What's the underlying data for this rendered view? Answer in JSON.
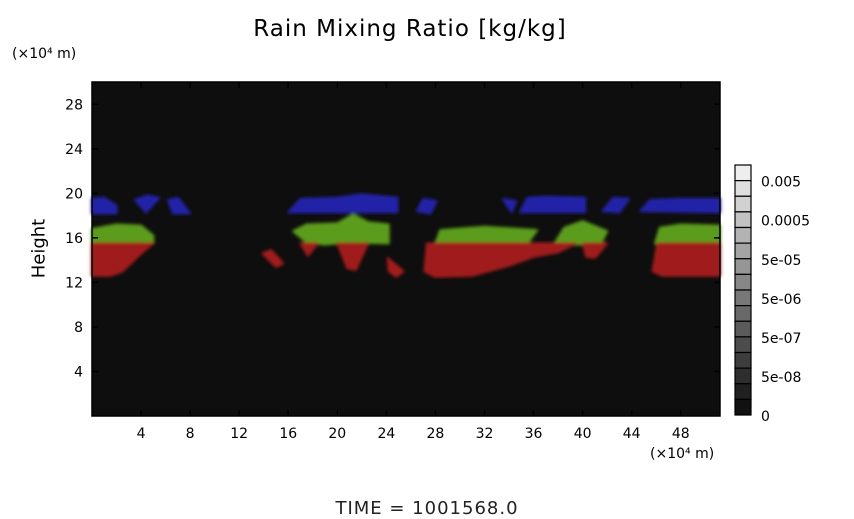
{
  "chart_data": {
    "type": "heatmap",
    "title": "Rain Mixing Ratio [kg/kg]",
    "ylabel": "Height",
    "xunit": "(×10⁴ m)",
    "yunit": "(×10⁴ m)",
    "footer": "TIME = 1001568.0",
    "xlim": [
      0,
      51.2
    ],
    "ylim": [
      0,
      30
    ],
    "xticks": [
      "4",
      "8",
      "12",
      "16",
      "20",
      "24",
      "28",
      "32",
      "36",
      "40",
      "44",
      "48"
    ],
    "yticks": [
      "4",
      "8",
      "12",
      "16",
      "20",
      "24",
      "28"
    ],
    "background_color": "#0e0e0e",
    "colorbar": {
      "levels": 16,
      "labels": [
        "0.005",
        "0.0005",
        "5e-05",
        "5e-06",
        "5e-07",
        "5e-08",
        "0"
      ]
    },
    "layer_colors": {
      "blue": "#2222a8",
      "green": "#5c9c1a",
      "red": "#a01a1a"
    },
    "regions": [
      {
        "layer": "blue",
        "polygon": [
          [
            0,
            18.2
          ],
          [
            0,
            19.5
          ],
          [
            1,
            19.6
          ],
          [
            2,
            18.9
          ],
          [
            2,
            18.2
          ]
        ]
      },
      {
        "layer": "blue",
        "polygon": [
          [
            3.5,
            19.4
          ],
          [
            4.4,
            18.3
          ],
          [
            5.5,
            19.6
          ],
          [
            4.5,
            19.8
          ]
        ]
      },
      {
        "layer": "blue",
        "polygon": [
          [
            6.2,
            19.4
          ],
          [
            7,
            19.6
          ],
          [
            8,
            18.2
          ],
          [
            6.6,
            18.2
          ]
        ]
      },
      {
        "layer": "blue",
        "polygon": [
          [
            16,
            18.3
          ],
          [
            17,
            19.5
          ],
          [
            20,
            19.6
          ],
          [
            22,
            19.9
          ],
          [
            24.9,
            19.6
          ],
          [
            24.9,
            18.3
          ]
        ]
      },
      {
        "layer": "blue",
        "polygon": [
          [
            26.5,
            18.4
          ],
          [
            27,
            19.5
          ],
          [
            28.1,
            19.3
          ],
          [
            27.6,
            18.2
          ]
        ]
      },
      {
        "layer": "blue",
        "polygon": [
          [
            33.5,
            19.5
          ],
          [
            34.2,
            18.3
          ],
          [
            34.6,
            19.3
          ]
        ]
      },
      {
        "layer": "blue",
        "polygon": [
          [
            34.9,
            18.3
          ],
          [
            35.5,
            19.6
          ],
          [
            37,
            19.7
          ],
          [
            40.2,
            19.6
          ],
          [
            40.2,
            18.3
          ]
        ]
      },
      {
        "layer": "blue",
        "polygon": [
          [
            41.6,
            18.4
          ],
          [
            42.5,
            19.6
          ],
          [
            43.8,
            19.5
          ],
          [
            43,
            18.3
          ]
        ]
      },
      {
        "layer": "blue",
        "polygon": [
          [
            44.7,
            18.4
          ],
          [
            45.5,
            19.4
          ],
          [
            48,
            19.5
          ],
          [
            51.2,
            19.5
          ],
          [
            51.2,
            18.3
          ]
        ]
      },
      {
        "layer": "green",
        "polygon": [
          [
            0,
            15.5
          ],
          [
            0,
            16.8
          ],
          [
            2,
            17.2
          ],
          [
            4,
            17.1
          ],
          [
            5,
            16.2
          ],
          [
            5,
            15.5
          ]
        ]
      },
      {
        "layer": "green",
        "polygon": [
          [
            16.4,
            16.6
          ],
          [
            17.5,
            17.2
          ],
          [
            20,
            17.3
          ],
          [
            21.3,
            18.1
          ],
          [
            22.5,
            17.4
          ],
          [
            24.2,
            17.2
          ],
          [
            24.2,
            15.5
          ],
          [
            21,
            15.6
          ],
          [
            19,
            15.4
          ],
          [
            17.5,
            15.6
          ]
        ]
      },
      {
        "layer": "green",
        "polygon": [
          [
            28,
            15.5
          ],
          [
            28.4,
            16.7
          ],
          [
            32,
            17
          ],
          [
            36.3,
            16.7
          ],
          [
            35.5,
            15.5
          ]
        ]
      },
      {
        "layer": "green",
        "polygon": [
          [
            37.6,
            15.3
          ],
          [
            38.5,
            16.9
          ],
          [
            40,
            17.5
          ],
          [
            42,
            16.6
          ],
          [
            41.5,
            15.5
          ]
        ]
      },
      {
        "layer": "green",
        "polygon": [
          [
            45.9,
            15.5
          ],
          [
            46.3,
            16.9
          ],
          [
            48,
            17.2
          ],
          [
            51.2,
            17.1
          ],
          [
            51.2,
            15.5
          ]
        ]
      },
      {
        "layer": "red",
        "polygon": [
          [
            0,
            12.6
          ],
          [
            0,
            15.5
          ],
          [
            5,
            15.5
          ],
          [
            4,
            14.6
          ],
          [
            2.5,
            13
          ],
          [
            1.5,
            12.6
          ]
        ]
      },
      {
        "layer": "red",
        "polygon": [
          [
            13.9,
            14.6
          ],
          [
            14.6,
            14.9
          ],
          [
            15.6,
            13.7
          ],
          [
            15,
            13.4
          ]
        ]
      },
      {
        "layer": "red",
        "polygon": [
          [
            17,
            15.5
          ],
          [
            18.4,
            15.5
          ],
          [
            17.6,
            14.4
          ]
        ]
      },
      {
        "layer": "red",
        "polygon": [
          [
            20,
            15.5
          ],
          [
            22.5,
            15.5
          ],
          [
            21.5,
            13.1
          ],
          [
            20.8,
            13.3
          ]
        ]
      },
      {
        "layer": "red",
        "polygon": [
          [
            24.1,
            14.2
          ],
          [
            25.4,
            13
          ],
          [
            24.8,
            12.5
          ],
          [
            24.2,
            13
          ]
        ]
      },
      {
        "layer": "red",
        "polygon": [
          [
            27.1,
            13
          ],
          [
            27.3,
            15.5
          ],
          [
            39.5,
            15.5
          ],
          [
            38,
            14.7
          ],
          [
            36,
            14.3
          ],
          [
            34,
            13.5
          ],
          [
            31,
            12.6
          ],
          [
            28,
            12.5
          ]
        ]
      },
      {
        "layer": "red",
        "polygon": [
          [
            40,
            15.5
          ],
          [
            42,
            15.5
          ],
          [
            41,
            14.2
          ],
          [
            40.3,
            14.3
          ]
        ]
      },
      {
        "layer": "red",
        "polygon": [
          [
            45.7,
            13
          ],
          [
            46.1,
            15.5
          ],
          [
            51.2,
            15.5
          ],
          [
            51.2,
            12.6
          ],
          [
            46.5,
            12.6
          ]
        ]
      }
    ]
  }
}
